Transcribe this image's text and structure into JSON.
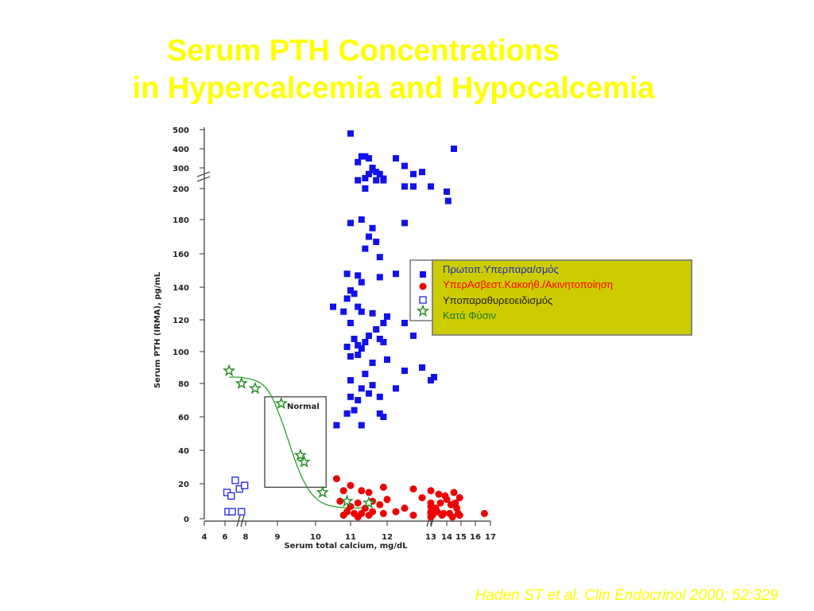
{
  "slide": {
    "title_line1": "Serum PTH Concentrations",
    "title_line2": "in Hypercalcemia and Hypocalcemia",
    "citation": "Haden ST et al. Clin Endocrinol 2000; 52:329",
    "title_color": "#ffff00"
  },
  "legend": {
    "background": "#cccc00",
    "entries": [
      {
        "label": "Πρωτοπ.Υπερπαρα/σμός",
        "color": "#1f2fbf"
      },
      {
        "label": "ΥπερΑσβεστ.Κακοήθ./Ακινητοποίηση",
        "color": "#ff0000"
      },
      {
        "label": "Υποπαραθυρεοειδισμός",
        "color": "#222222"
      },
      {
        "label": "Κατά Φύσιν",
        "color": "#1e7a1e"
      }
    ]
  },
  "chart_data": {
    "type": "scatter",
    "xlabel": "Serum total calcium, mg/dL",
    "ylabel": "Serum PTH (IRMA), pg/mL",
    "x_ticks": [
      "4",
      "6",
      "8",
      "9",
      "10",
      "11",
      "12",
      "13",
      "14",
      "15",
      "16",
      "17"
    ],
    "y_ticks": [
      "0",
      "20",
      "40",
      "60",
      "80",
      "100",
      "120",
      "140",
      "160",
      "180",
      "200",
      "300",
      "400",
      "500"
    ],
    "x_axis_breaks": "6–8 and 12–13",
    "y_axis_break": "200–300",
    "normal_box": {
      "label": "Normal",
      "x": [
        8.6,
        10.3
      ],
      "y": [
        18,
        72
      ]
    },
    "series": [
      {
        "name": "Πρωτοπ.Υπερπαρα/σμός",
        "marker": "filled-square",
        "color": "#1111ee",
        "points": [
          [
            11.0,
            480
          ],
          [
            11.2,
            330
          ],
          [
            11.3,
            360
          ],
          [
            11.4,
            360
          ],
          [
            11.5,
            350
          ],
          [
            11.6,
            300
          ],
          [
            11.7,
            280
          ],
          [
            11.5,
            270
          ],
          [
            11.6,
            290
          ],
          [
            11.8,
            270
          ],
          [
            11.9,
            240
          ],
          [
            12.1,
            350
          ],
          [
            12.2,
            310
          ],
          [
            12.4,
            280
          ],
          [
            12.3,
            270
          ],
          [
            11.2,
            240
          ],
          [
            11.4,
            250
          ],
          [
            11.7,
            240
          ],
          [
            11.9,
            248
          ],
          [
            12.2,
            210
          ],
          [
            12.3,
            210
          ],
          [
            12.5,
            210
          ],
          [
            11.4,
            200
          ],
          [
            14.5,
            400
          ],
          [
            14.0,
            198
          ],
          [
            14.1,
            192
          ],
          [
            11.0,
            178
          ],
          [
            11.3,
            180
          ],
          [
            11.5,
            170
          ],
          [
            11.6,
            175
          ],
          [
            11.7,
            167
          ],
          [
            11.4,
            163
          ],
          [
            12.2,
            178
          ],
          [
            11.8,
            158
          ],
          [
            10.9,
            148
          ],
          [
            11.0,
            138
          ],
          [
            11.2,
            147
          ],
          [
            11.3,
            143
          ],
          [
            11.8,
            146
          ],
          [
            12.1,
            148
          ],
          [
            10.5,
            128
          ],
          [
            10.8,
            125
          ],
          [
            10.9,
            133
          ],
          [
            11.1,
            136
          ],
          [
            11.2,
            128
          ],
          [
            11.3,
            125
          ],
          [
            11.6,
            124
          ],
          [
            11.7,
            114
          ],
          [
            11.9,
            118
          ],
          [
            12.0,
            122
          ],
          [
            12.2,
            118
          ],
          [
            11.0,
            118
          ],
          [
            11.1,
            108
          ],
          [
            11.2,
            104
          ],
          [
            11.4,
            106
          ],
          [
            11.5,
            110
          ],
          [
            11.8,
            108
          ],
          [
            11.9,
            106
          ],
          [
            12.3,
            110
          ],
          [
            10.9,
            103
          ],
          [
            11.0,
            97
          ],
          [
            11.2,
            98
          ],
          [
            11.3,
            102
          ],
          [
            11.6,
            93
          ],
          [
            12.0,
            95
          ],
          [
            12.2,
            88
          ],
          [
            12.4,
            90
          ],
          [
            12.9,
            82
          ],
          [
            13.2,
            84
          ],
          [
            11.0,
            82
          ],
          [
            11.4,
            86
          ],
          [
            11.3,
            77
          ],
          [
            11.5,
            74
          ],
          [
            11.6,
            79
          ],
          [
            11.8,
            72
          ],
          [
            12.1,
            77
          ],
          [
            11.0,
            72
          ],
          [
            11.2,
            70
          ],
          [
            10.9,
            62
          ],
          [
            11.1,
            64
          ],
          [
            11.8,
            62
          ],
          [
            11.9,
            60
          ],
          [
            10.6,
            55
          ],
          [
            11.3,
            55
          ]
        ]
      },
      {
        "name": "ΥπερΑσβεστ.Κακοήθ./Ακινητοποίηση",
        "marker": "filled-circle",
        "color": "#ee0000",
        "points": [
          [
            10.6,
            23
          ],
          [
            10.8,
            16
          ],
          [
            11.0,
            19
          ],
          [
            11.3,
            16
          ],
          [
            11.5,
            15
          ],
          [
            11.9,
            18
          ],
          [
            12.3,
            17
          ],
          [
            12.6,
            16
          ],
          [
            13.5,
            14
          ],
          [
            13.9,
            13
          ],
          [
            14.5,
            15
          ],
          [
            14.6,
            9
          ],
          [
            14.9,
            12
          ],
          [
            10.7,
            10
          ],
          [
            11.0,
            7
          ],
          [
            11.2,
            9
          ],
          [
            11.4,
            6
          ],
          [
            11.6,
            10
          ],
          [
            11.8,
            8
          ],
          [
            12.0,
            11
          ],
          [
            12.2,
            6
          ],
          [
            12.4,
            12
          ],
          [
            12.6,
            7
          ],
          [
            12.8,
            9
          ],
          [
            13.3,
            6
          ],
          [
            13.6,
            9
          ],
          [
            14.0,
            11
          ],
          [
            14.3,
            8
          ],
          [
            14.7,
            6
          ],
          [
            10.9,
            4
          ],
          [
            11.1,
            3
          ],
          [
            11.3,
            3
          ],
          [
            11.6,
            4
          ],
          [
            11.9,
            3
          ],
          [
            12.1,
            4
          ],
          [
            12.5,
            3
          ],
          [
            12.9,
            4
          ],
          [
            13.4,
            4
          ],
          [
            13.8,
            3
          ],
          [
            14.2,
            3
          ],
          [
            14.8,
            3
          ],
          [
            16.6,
            3
          ],
          [
            10.8,
            2
          ],
          [
            11.5,
            2
          ],
          [
            12.3,
            2
          ],
          [
            13.1,
            2
          ],
          [
            13.7,
            2
          ],
          [
            14.9,
            2
          ],
          [
            11.2,
            1
          ],
          [
            12.7,
            1
          ],
          [
            14.4,
            1
          ]
        ]
      },
      {
        "name": "Υποπαραθυρεοειδισμός",
        "marker": "open-square",
        "color": "#2222ee",
        "points": [
          [
            6.2,
            15
          ],
          [
            6.6,
            13
          ],
          [
            7.0,
            22
          ],
          [
            7.4,
            17
          ],
          [
            7.9,
            19
          ],
          [
            6.3,
            4
          ],
          [
            6.7,
            4
          ],
          [
            7.6,
            4
          ]
        ]
      },
      {
        "name": "Κατά Φύσιν",
        "marker": "star",
        "color": "#1e8c1e",
        "points": [
          [
            6.4,
            88
          ],
          [
            7.6,
            80
          ],
          [
            8.3,
            77
          ],
          [
            9.1,
            68
          ],
          [
            9.6,
            37
          ],
          [
            9.7,
            33
          ],
          [
            10.2,
            15
          ],
          [
            10.9,
            10
          ],
          [
            11.5,
            9
          ]
        ]
      }
    ]
  }
}
